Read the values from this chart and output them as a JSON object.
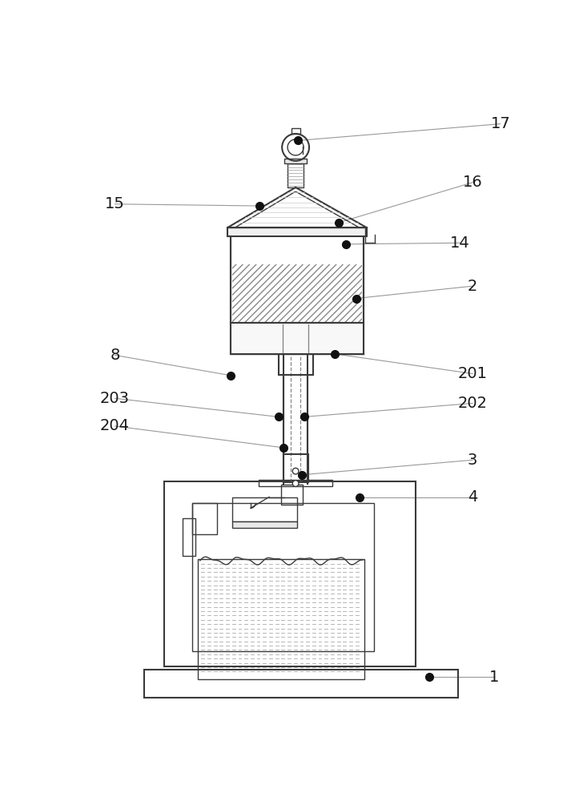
{
  "bg_color": "#ffffff",
  "line_color": "#3a3a3a",
  "anno_line_color": "#999999",
  "label_color": "#1a1a1a",
  "annotations": [
    [
      "17",
      690,
      45,
      362,
      72
    ],
    [
      "16",
      645,
      140,
      428,
      205
    ],
    [
      "15",
      65,
      175,
      300,
      178
    ],
    [
      "14",
      625,
      238,
      440,
      240
    ],
    [
      "2",
      645,
      308,
      456,
      328
    ],
    [
      "8",
      65,
      420,
      253,
      453
    ],
    [
      "201",
      645,
      450,
      422,
      418
    ],
    [
      "202",
      645,
      498,
      372,
      520
    ],
    [
      "203",
      65,
      490,
      330,
      520
    ],
    [
      "204",
      65,
      535,
      338,
      570
    ],
    [
      "3",
      645,
      590,
      368,
      614
    ],
    [
      "4",
      645,
      650,
      462,
      650
    ],
    [
      "1",
      680,
      942,
      575,
      942
    ]
  ]
}
